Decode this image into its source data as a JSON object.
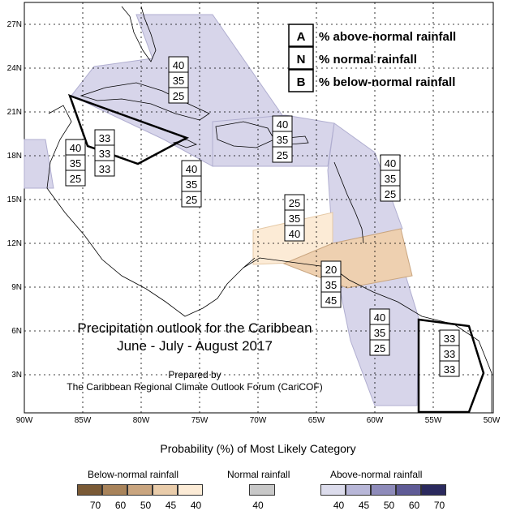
{
  "map": {
    "lat_labels": [
      "27N",
      "24N",
      "21N",
      "18N",
      "15N",
      "12N",
      "9N",
      "6N",
      "3N"
    ],
    "lon_labels": [
      "90W",
      "85W",
      "80W",
      "75W",
      "70W",
      "65W",
      "60W",
      "55W",
      "50W"
    ],
    "boxes": [
      {
        "values": [
          "40",
          "35",
          "25"
        ]
      },
      {
        "values": [
          "40",
          "35",
          "25"
        ]
      },
      {
        "values": [
          "40",
          "35",
          "25"
        ]
      },
      {
        "values": [
          "33",
          "33",
          "33"
        ]
      },
      {
        "values": [
          "40",
          "35",
          "25"
        ]
      },
      {
        "values": [
          "40",
          "35",
          "25"
        ]
      },
      {
        "values": [
          "25",
          "35",
          "40"
        ]
      },
      {
        "values": [
          "20",
          "35",
          "45"
        ]
      },
      {
        "values": [
          "40",
          "35",
          "25"
        ]
      },
      {
        "values": [
          "33",
          "33",
          "33"
        ]
      }
    ],
    "key": [
      {
        "letter": "A",
        "text": "% above-normal rainfall"
      },
      {
        "letter": "N",
        "text": "% normal rainfall"
      },
      {
        "letter": "B",
        "text": "% below-normal rainfall"
      }
    ],
    "title_line1": "Precipitation outlook for the Caribbean",
    "title_line2": "June - July - August 2017",
    "prepared_line1": "Prepared by",
    "prepared_line2": "The Caribbean Regional Climate Outlook Forum (CariCOF)",
    "colors": {
      "above_40": "#d7d5ea",
      "below_40": "#fcebd6",
      "below_45": "#eed0b0"
    }
  },
  "legend": {
    "title": "Probability (%) of Most Likely Category",
    "below": {
      "label": "Below-normal rainfall",
      "colors": [
        "#7a5a36",
        "#a8835a",
        "#c9a57f",
        "#e9ccaa",
        "#fcebd6"
      ],
      "ticks": [
        "70",
        "60",
        "50",
        "45",
        "40"
      ]
    },
    "normal": {
      "label": "Normal rainfall",
      "colors": [
        "#c8c8c8"
      ],
      "ticks": [
        "40"
      ]
    },
    "above": {
      "label": "Above-normal rainfall",
      "colors": [
        "#dcdcec",
        "#b8b7d8",
        "#8e8bba",
        "#5f5b96",
        "#2b2a5e"
      ],
      "ticks": [
        "40",
        "45",
        "50",
        "60",
        "70"
      ]
    }
  }
}
